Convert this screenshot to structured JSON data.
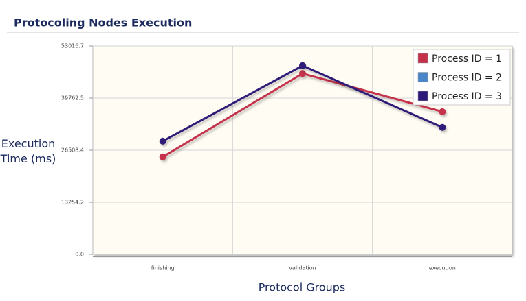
{
  "chart_data": {
    "type": "line",
    "title": "Protocoling Nodes Execution",
    "x_label": "Protocol Groups",
    "y_label": "Execution Time (ms)",
    "categories": [
      "finishing",
      "validation",
      "execution"
    ],
    "series": [
      {
        "name": "Process ID = 1",
        "color": "#c4314b",
        "values": [
          24800,
          46000,
          36300
        ]
      },
      {
        "name": "Process ID = 2",
        "color": "#4a86c8",
        "values": [
          null,
          null,
          null
        ]
      },
      {
        "name": "Process ID = 3",
        "color": "#2e1a78",
        "values": [
          28800,
          48000,
          32300
        ]
      }
    ],
    "ylim": [
      0,
      53016.7
    ],
    "yticks": [
      {
        "value": 0,
        "label": "0.0"
      },
      13254.2,
      26508.4,
      39762.5,
      53016.7
    ],
    "grid": true,
    "legend": "top-right"
  }
}
